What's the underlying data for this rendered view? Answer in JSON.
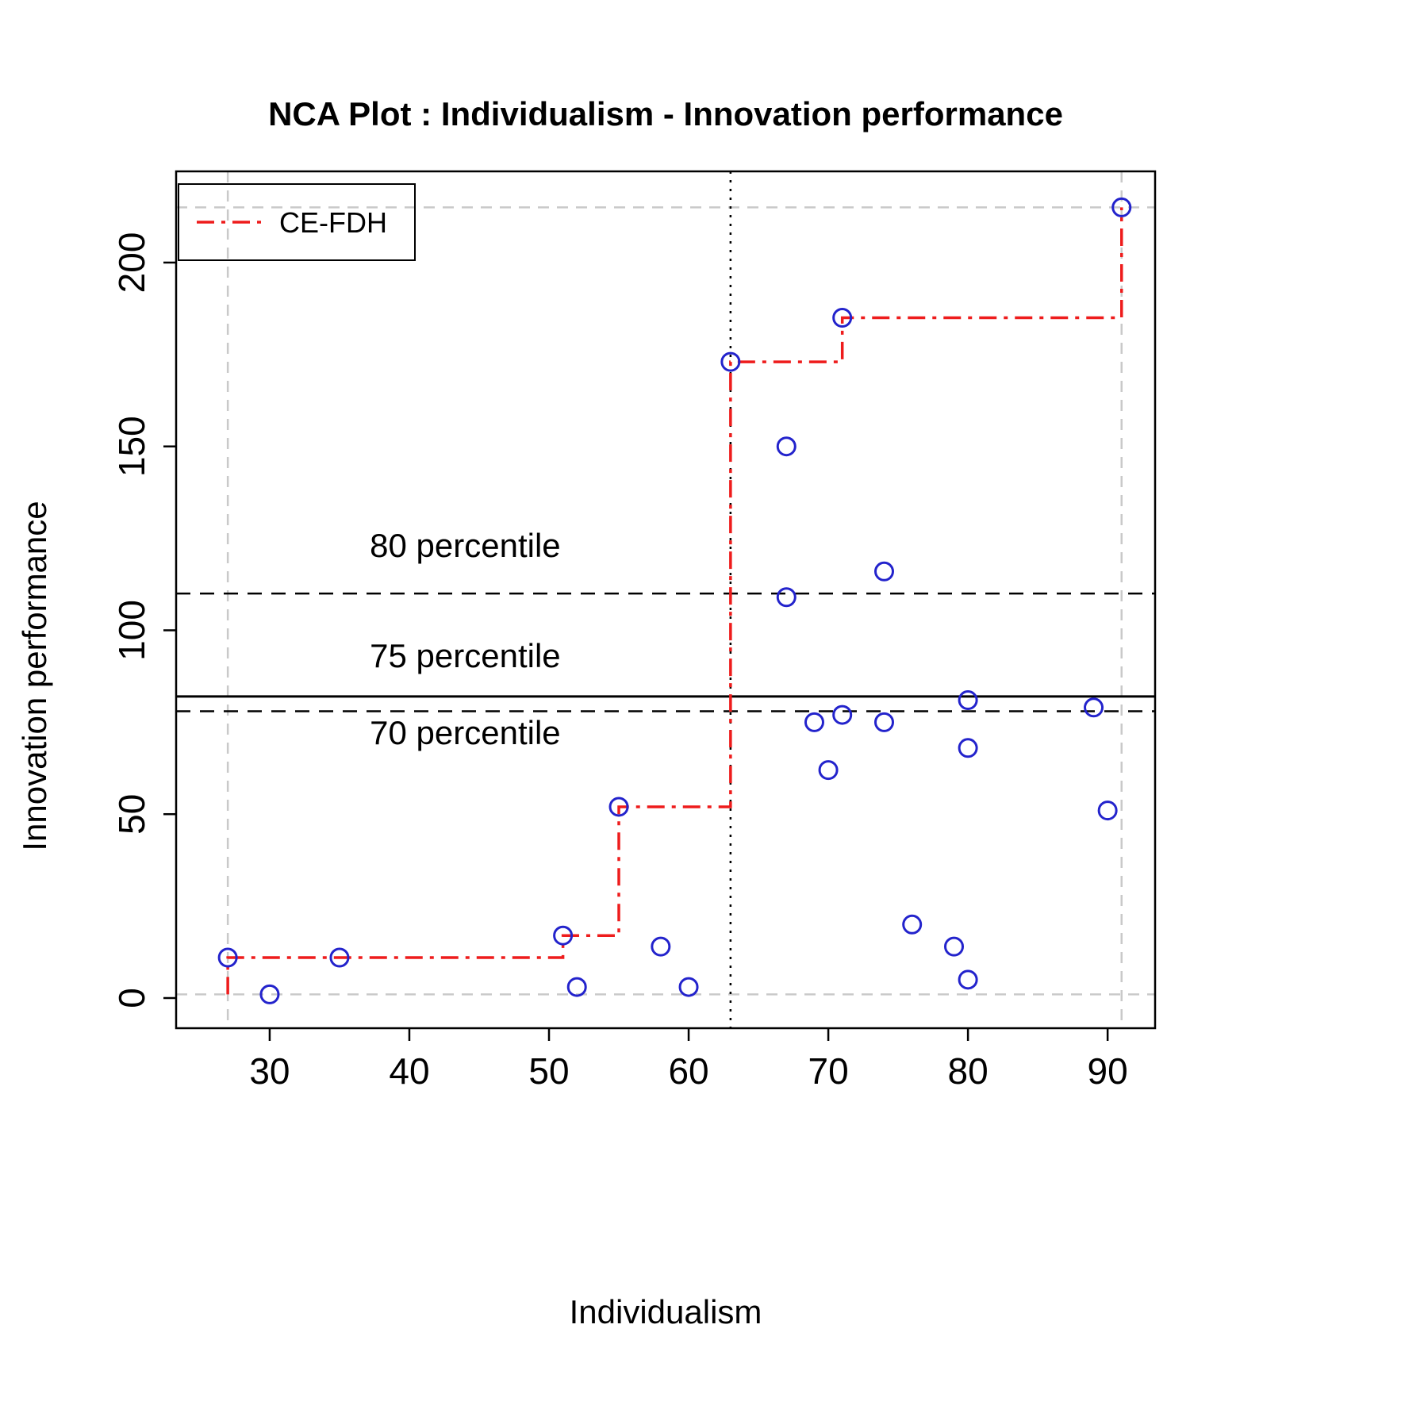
{
  "title": "NCA Plot : Individualism - Innovation performance",
  "axes": {
    "xlabel": "Individualism",
    "ylabel": "Innovation performance"
  },
  "legend": {
    "label": "CE-FDH"
  },
  "colors": {
    "point": "#2323cc",
    "ceiling": "#ee1c1c",
    "scope": "#c9c9c9",
    "axis": "#000000",
    "background": "#ffffff"
  },
  "chart_data": {
    "type": "scatter",
    "title": "NCA Plot : Individualism - Innovation performance",
    "xlabel": "Individualism",
    "ylabel": "Innovation performance",
    "xlim": [
      23.3,
      93.4
    ],
    "ylim": [
      -8.2,
      224.8
    ],
    "x_ticks": [
      30,
      40,
      50,
      60,
      70,
      80,
      90
    ],
    "y_ticks": [
      0,
      50,
      100,
      150,
      200
    ],
    "grid": false,
    "legend_position": "top-left",
    "points": [
      [
        27,
        11
      ],
      [
        30,
        1
      ],
      [
        35,
        11
      ],
      [
        51,
        17
      ],
      [
        52,
        3
      ],
      [
        55,
        52
      ],
      [
        58,
        14
      ],
      [
        60,
        3
      ],
      [
        63,
        173
      ],
      [
        67,
        150
      ],
      [
        67,
        109
      ],
      [
        69,
        75
      ],
      [
        70,
        62
      ],
      [
        71,
        185
      ],
      [
        71,
        77
      ],
      [
        74,
        116
      ],
      [
        74,
        75
      ],
      [
        76,
        20
      ],
      [
        79,
        14
      ],
      [
        80,
        81
      ],
      [
        80,
        68
      ],
      [
        80,
        5
      ],
      [
        89,
        79
      ],
      [
        90,
        51
      ],
      [
        91,
        215
      ]
    ],
    "ceiling_line": [
      [
        27,
        1
      ],
      [
        27,
        11
      ],
      [
        51,
        11
      ],
      [
        51,
        17
      ],
      [
        55,
        17
      ],
      [
        55,
        52
      ],
      [
        63,
        52
      ],
      [
        63,
        173
      ],
      [
        71,
        173
      ],
      [
        71,
        185
      ],
      [
        91,
        185
      ],
      [
        91,
        215
      ]
    ],
    "scope": {
      "x": [
        27,
        91
      ],
      "y": [
        1,
        215
      ]
    },
    "vline_dotted_x": 63,
    "percentile_lines": [
      {
        "label": "80 percentile",
        "value": 110,
        "style": "dashed",
        "label_pos": [
          44,
          120
        ]
      },
      {
        "label": "75 percentile",
        "value": 82,
        "style": "solid",
        "label_pos": [
          44,
          90
        ]
      },
      {
        "label": "70 percentile",
        "value": 78,
        "style": "dashed",
        "label_pos": [
          44,
          69
        ]
      }
    ]
  }
}
